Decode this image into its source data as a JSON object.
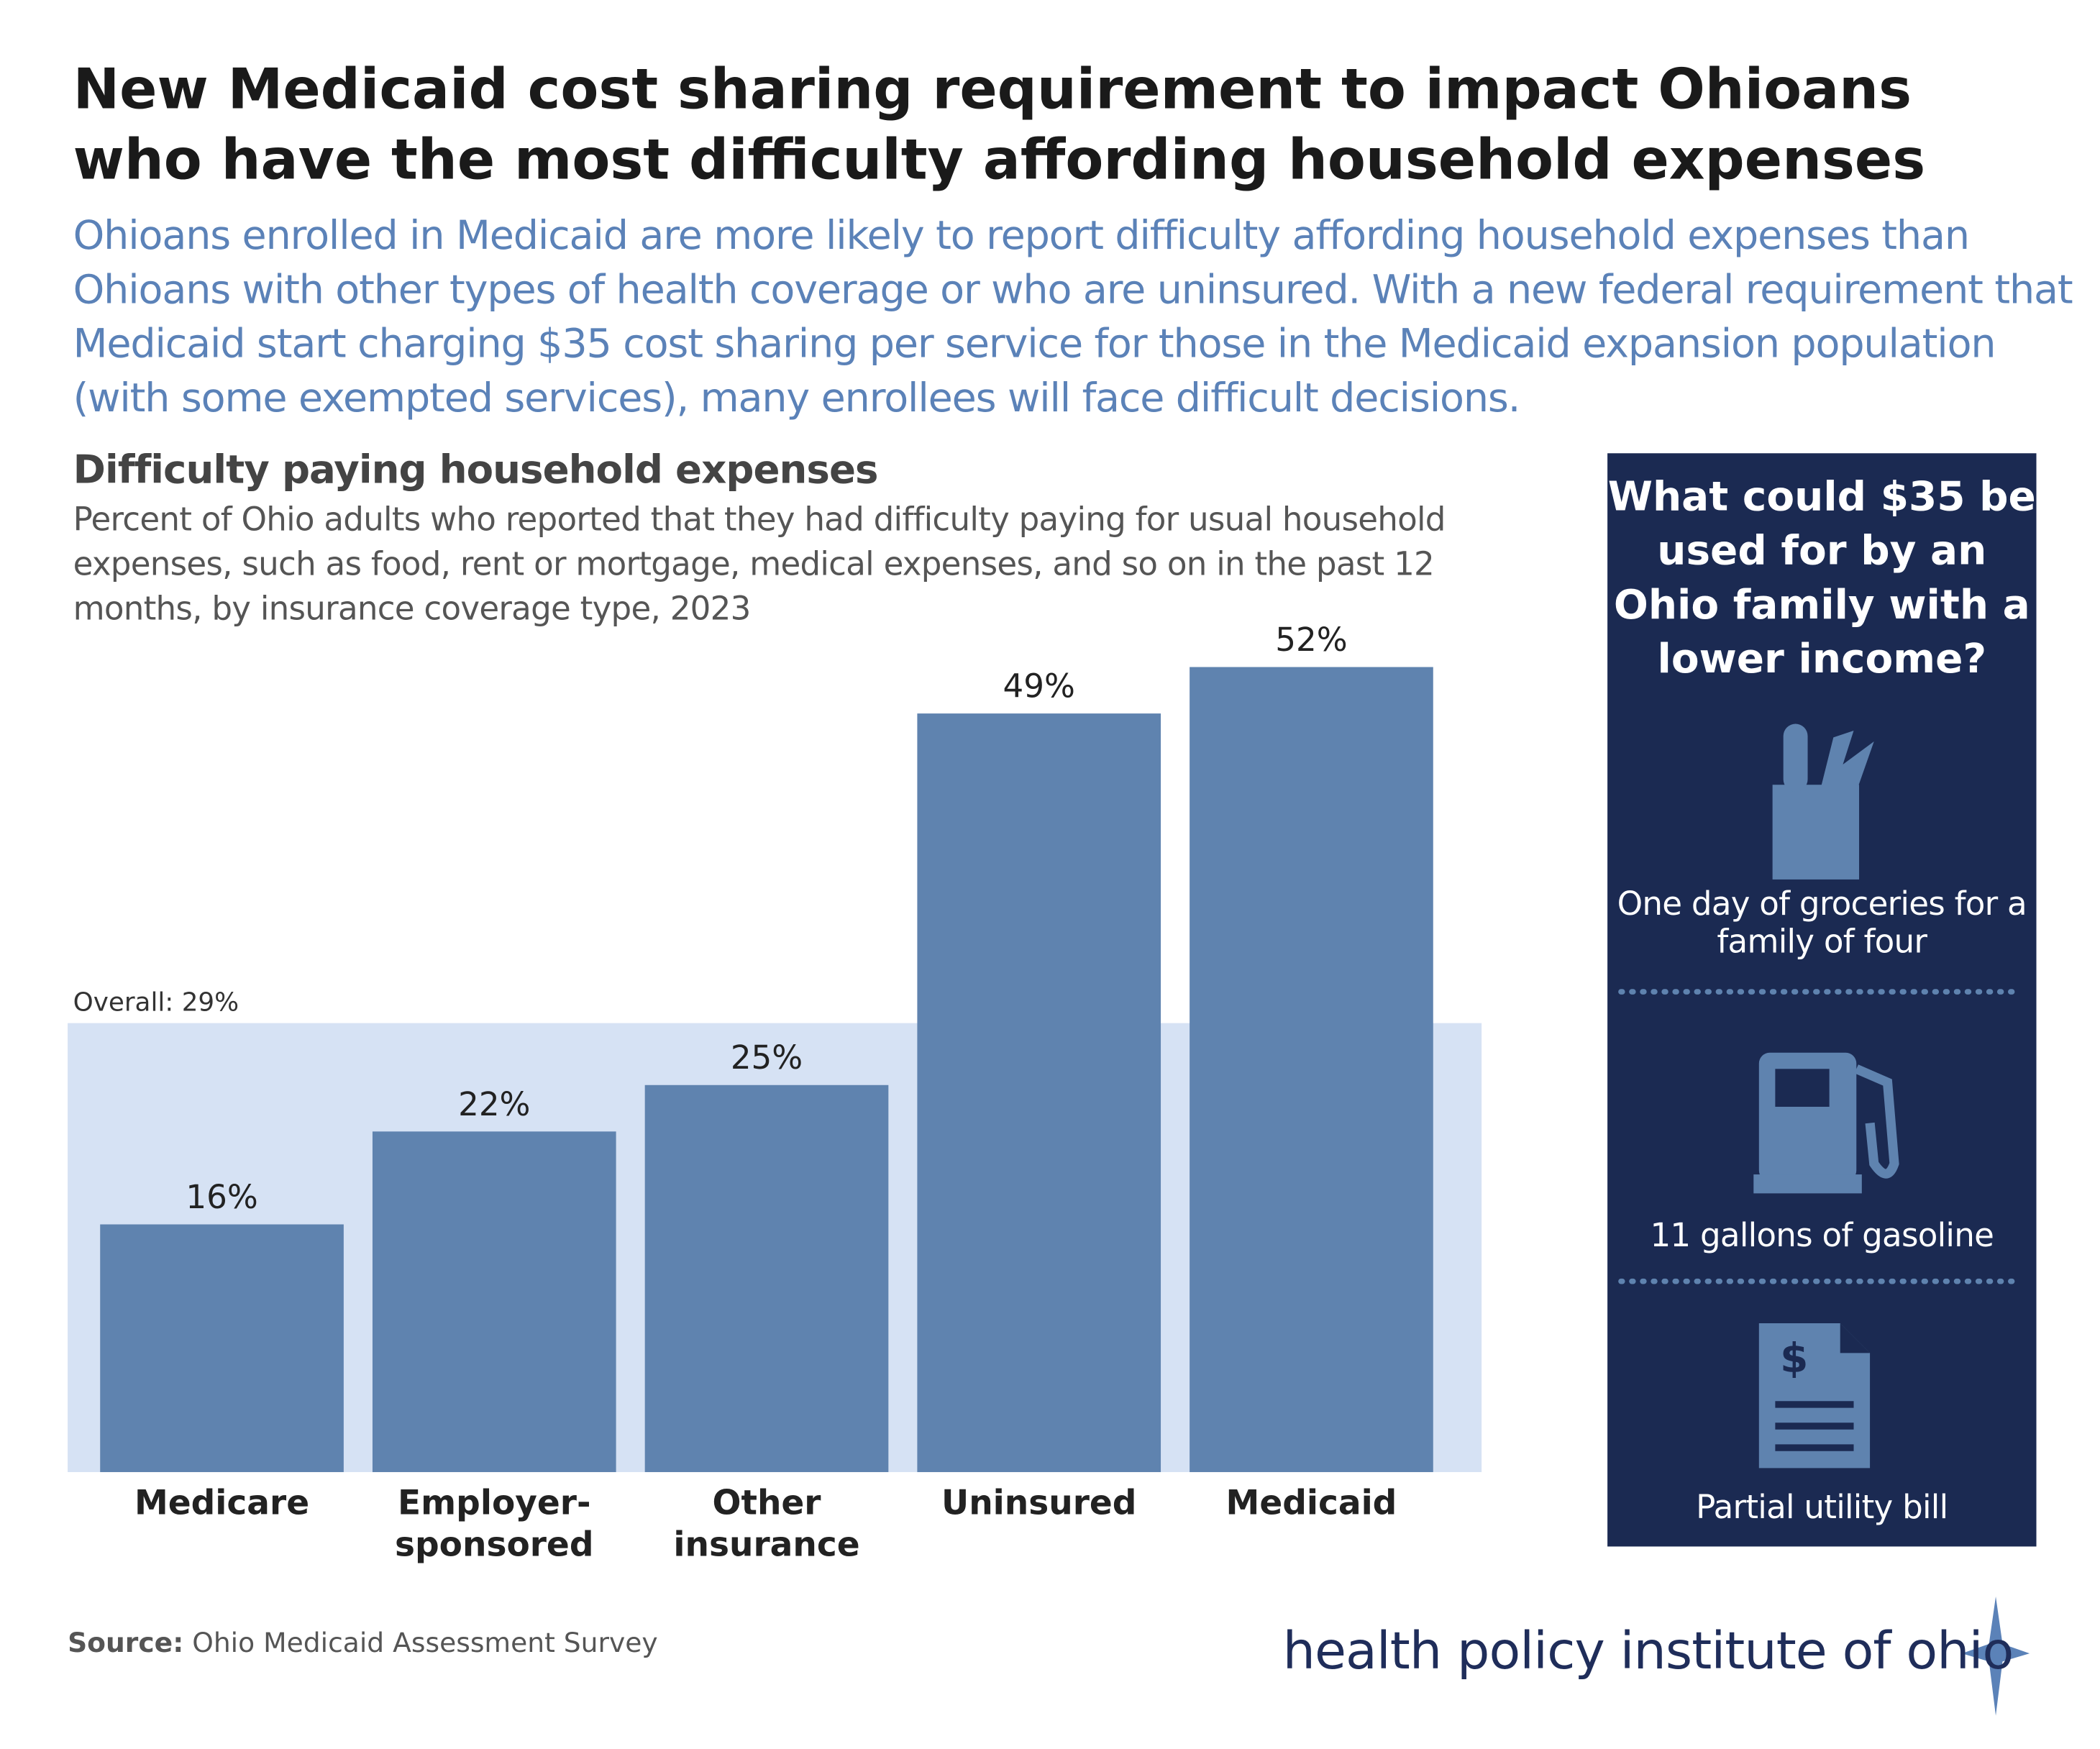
{
  "header": {
    "title": "New Medicaid cost sharing requirement to impact Ohioans who have the most difficulty affording household expenses",
    "intro": "Ohioans enrolled in Medicaid are more likely to report difficulty affording household expenses than Ohioans with other types of health coverage or who are uninsured. With a new federal requirement that Medicaid start charging $35 cost sharing per service for those in the Medicaid expansion population (with some exempted services), many enrollees will face difficult decisions."
  },
  "chart_data": {
    "type": "bar",
    "title": "Difficulty paying household expenses",
    "subtitle": "Percent of Ohio adults who reported that they had difficulty paying for usual household expenses, such as food, rent or mortgage, medical expenses, and so on in the past 12 months, by insurance coverage type, 2023",
    "categories": [
      "Medicare",
      "Employer-sponsored",
      "Other insurance",
      "Uninsured",
      "Medicaid"
    ],
    "values": [
      16,
      22,
      25,
      49,
      52
    ],
    "value_labels": [
      "16%",
      "22%",
      "25%",
      "49%",
      "52%"
    ],
    "color": "#5f83af",
    "reference": {
      "value": 29,
      "label": "Overall: 29%",
      "color": "#d6e2f4"
    }
  },
  "sidebar": {
    "title": "What could $35 be used for by an Ohio family with a lower income?",
    "items": [
      "One day of groceries for a family of four",
      "11 gallons of gasoline",
      "Partial utility bill"
    ]
  },
  "footer": {
    "source_label": "Source:",
    "source": "Ohio Medicaid Assessment Survey",
    "logo": "health policy institute of ohio"
  }
}
